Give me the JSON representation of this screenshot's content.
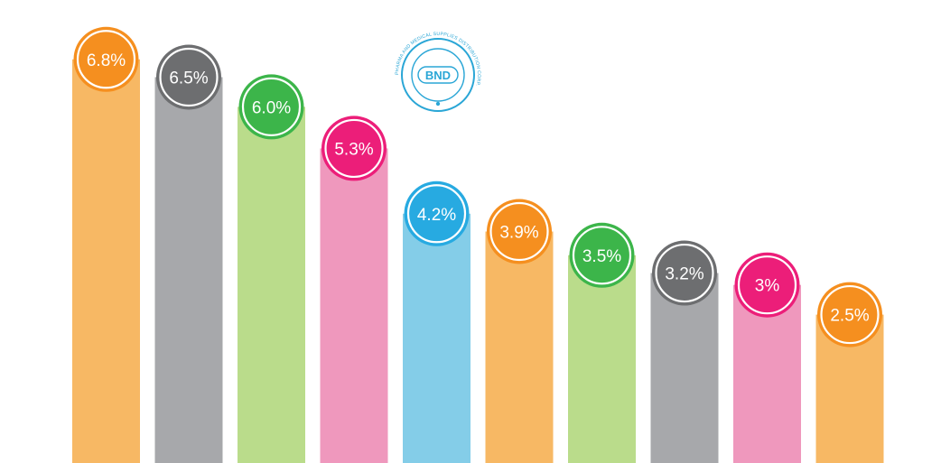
{
  "logo": {
    "initials": "BND",
    "ring_text": "PHARMA AND MEDICAL SUPPLIES DISTRIBUTION CORP.",
    "color": "#2aa6d6"
  },
  "chart_data": {
    "type": "bar",
    "categories": [],
    "values": [
      6.8,
      6.5,
      6.0,
      5.3,
      4.2,
      3.9,
      3.5,
      3.2,
      3,
      2.5
    ],
    "labels": [
      "6.8%",
      "6.5%",
      "6.0%",
      "5.3%",
      "4.2%",
      "3.9%",
      "3.5%",
      "3.2%",
      "3%",
      "2.5%"
    ],
    "bar_colors": [
      "#f7b864",
      "#a7a8ab",
      "#badc8b",
      "#ef98bd",
      "#84cde8",
      "#f7b864",
      "#badc8b",
      "#a7a8ab",
      "#ef98bd",
      "#f7b864"
    ],
    "bubble_colors": [
      "#f58f1f",
      "#6d6e70",
      "#3cb54a",
      "#ec1e79",
      "#27aae1",
      "#f58f1f",
      "#3cb54a",
      "#6d6e70",
      "#ec1e79",
      "#f58f1f"
    ],
    "title": "",
    "xlabel": "",
    "ylabel": "",
    "ylim": [
      0,
      7.8
    ],
    "grid": false,
    "legend": "none"
  }
}
